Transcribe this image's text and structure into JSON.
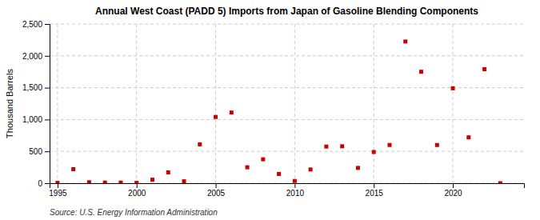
{
  "chart_data": {
    "type": "scatter",
    "title": "Annual West Coast (PADD 5) Imports from Japan of Gasoline Blending Components",
    "ylabel": "Thousand Barrels",
    "source": "Source: U.S. Energy Information Administration",
    "x": [
      1995,
      1996,
      1997,
      1998,
      1999,
      2000,
      2001,
      2002,
      2003,
      2004,
      2005,
      2006,
      2007,
      2008,
      2009,
      2010,
      2011,
      2012,
      2013,
      2014,
      2015,
      2016,
      2017,
      2018,
      2019,
      2020,
      2021,
      2022,
      2023
    ],
    "values": [
      5,
      220,
      15,
      10,
      10,
      5,
      55,
      170,
      30,
      610,
      1040,
      1110,
      250,
      375,
      145,
      35,
      215,
      575,
      580,
      240,
      490,
      600,
      2225,
      1750,
      600,
      1490,
      720,
      1790,
      0
    ],
    "color": "#cc0000",
    "marker": "square",
    "xlim": [
      1994.5,
      2024.5
    ],
    "xticks": [
      1995,
      2000,
      2005,
      2010,
      2015,
      2020
    ],
    "ylim": [
      0,
      2500
    ],
    "yticks": [
      0,
      500,
      {
        "value": 1000,
        "label": "1,000"
      },
      {
        "value": 1500,
        "label": "1,500"
      },
      {
        "value": 2000,
        "label": "2,000"
      },
      {
        "value": 2500,
        "label": "2,500"
      }
    ],
    "grid": true
  }
}
